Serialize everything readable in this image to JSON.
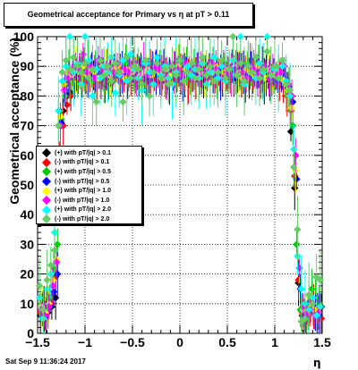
{
  "chart_data": {
    "type": "scatter",
    "title": "Geometrical acceptance for Primary vs    η at pT > 0.11",
    "xlabel": "η",
    "ylabel": "Geometrical acceptance (%)",
    "xlim": [
      -1.5,
      1.5
    ],
    "ylim": [
      0,
      100
    ],
    "x_ticks": [
      "−1.5",
      "−1",
      "−0.5",
      "0",
      "0.5",
      "1",
      "1.5"
    ],
    "y_ticks": [
      "0",
      "10",
      "20",
      "30",
      "40",
      "50",
      "60",
      "70",
      "80",
      "90",
      "100"
    ],
    "grid": true,
    "legend_position": "left-middle",
    "series": [
      {
        "name": "(+) with pT/|q| > 0.1",
        "color": "#000000",
        "x": [
          -1.47,
          -1.43,
          -1.39,
          -1.35,
          -1.31,
          -1.27,
          -1.23,
          -1.19,
          -1.15,
          -1.11,
          -1.07,
          -1.03,
          -0.99,
          -0.95,
          -0.91,
          -0.87,
          -0.83,
          -0.79,
          -0.75,
          -0.71,
          -0.67,
          -0.63,
          -0.59,
          -0.55,
          -0.51,
          -0.47,
          -0.43,
          -0.39,
          -0.35,
          -0.31,
          -0.27,
          -0.23,
          -0.19,
          -0.15,
          -0.11,
          -0.07,
          -0.03,
          0.01,
          0.05,
          0.09,
          0.13,
          0.17,
          0.21,
          0.25,
          0.29,
          0.33,
          0.37,
          0.41,
          0.45,
          0.49,
          0.53,
          0.57,
          0.61,
          0.65,
          0.69,
          0.73,
          0.77,
          0.81,
          0.85,
          0.89,
          0.93,
          0.97,
          1.01,
          1.05,
          1.09,
          1.13,
          1.17,
          1.21,
          1.25,
          1.29,
          1.33,
          1.37,
          1.41,
          1.45,
          1.49
        ],
        "y": [
          6,
          8,
          7,
          9,
          12,
          60,
          75,
          80,
          81,
          84,
          86,
          87,
          85,
          86,
          87,
          86,
          85,
          84,
          86,
          85,
          88,
          87,
          85,
          86,
          87,
          86,
          88,
          87,
          86,
          85,
          86,
          87,
          86,
          88,
          85,
          86,
          87,
          86,
          87,
          85,
          86,
          88,
          87,
          86,
          87,
          88,
          86,
          87,
          86,
          85,
          87,
          86,
          88,
          87,
          85,
          86,
          87,
          88,
          86,
          85,
          86,
          87,
          85,
          86,
          84,
          82,
          68,
          49,
          17,
          6,
          5,
          8,
          7,
          6,
          9
        ]
      },
      {
        "name": "(-) with pT/|q| > 0.1",
        "color": "#ff0000",
        "x": [
          -1.47,
          -1.43,
          -1.39,
          -1.35,
          -1.31,
          -1.27,
          -1.23,
          -1.19,
          -1.15,
          -1.11,
          -1.07,
          -1.03,
          -0.99,
          -0.95,
          -0.91,
          -0.87,
          -0.83,
          -0.79,
          -0.75,
          -0.71,
          -0.67,
          -0.63,
          -0.59,
          -0.55,
          -0.51,
          -0.47,
          -0.43,
          -0.39,
          -0.35,
          -0.31,
          -0.27,
          -0.23,
          -0.19,
          -0.15,
          -0.11,
          -0.07,
          -0.03,
          0.01,
          0.05,
          0.09,
          0.13,
          0.17,
          0.21,
          0.25,
          0.29,
          0.33,
          0.37,
          0.41,
          0.45,
          0.49,
          0.53,
          0.57,
          0.61,
          0.65,
          0.69,
          0.73,
          0.77,
          0.81,
          0.85,
          0.89,
          0.93,
          0.97,
          1.01,
          1.05,
          1.09,
          1.13,
          1.17,
          1.21,
          1.25,
          1.29,
          1.33,
          1.37,
          1.41,
          1.45,
          1.49
        ],
        "y": [
          7,
          9,
          8,
          10,
          19,
          62,
          70,
          77,
          80,
          85,
          84,
          86,
          85,
          87,
          86,
          85,
          86,
          87,
          85,
          86,
          87,
          88,
          86,
          85,
          86,
          87,
          85,
          86,
          87,
          88,
          86,
          85,
          87,
          86,
          85,
          87,
          86,
          88,
          86,
          85,
          87,
          86,
          85,
          88,
          86,
          87,
          86,
          88,
          87,
          86,
          85,
          87,
          86,
          85,
          88,
          86,
          87,
          86,
          85,
          86,
          87,
          84,
          86,
          85,
          83,
          80,
          75,
          53,
          18,
          7,
          6,
          8,
          9,
          7,
          5
        ]
      },
      {
        "name": "(+) with pT/|q| > 0.5",
        "color": "#00cc00",
        "x": [
          -1.45,
          -1.41,
          -1.37,
          -1.33,
          -1.29,
          -1.25,
          -1.21,
          -1.17,
          -1.13,
          -1.09,
          -1.05,
          -1.01,
          -0.97,
          -0.93,
          -0.89,
          -0.85,
          -0.81,
          -0.77,
          -0.73,
          -0.69,
          -0.65,
          -0.61,
          -0.57,
          -0.53,
          -0.49,
          -0.45,
          -0.41,
          -0.37,
          -0.33,
          -0.29,
          -0.25,
          -0.21,
          -0.17,
          -0.13,
          -0.09,
          -0.05,
          -0.01,
          0.03,
          0.07,
          0.11,
          0.15,
          0.19,
          0.23,
          0.27,
          0.31,
          0.35,
          0.39,
          0.43,
          0.47,
          0.51,
          0.55,
          0.59,
          0.63,
          0.67,
          0.71,
          0.75,
          0.79,
          0.83,
          0.87,
          0.91,
          0.95,
          0.99,
          1.03,
          1.07,
          1.11,
          1.15,
          1.19,
          1.23,
          1.27,
          1.31,
          1.35,
          1.39,
          1.43,
          1.47
        ],
        "y": [
          10,
          8,
          12,
          22,
          30,
          72,
          80,
          88,
          85,
          90,
          86,
          89,
          91,
          85,
          88,
          90,
          87,
          89,
          86,
          90,
          88,
          87,
          91,
          86,
          89,
          88,
          90,
          86,
          89,
          91,
          87,
          88,
          90,
          86,
          89,
          88,
          91,
          87,
          90,
          86,
          89,
          91,
          88,
          87,
          90,
          89,
          86,
          88,
          91,
          87,
          90,
          88,
          86,
          89,
          91,
          87,
          88,
          90,
          86,
          89,
          88,
          85,
          87,
          86,
          84,
          82,
          70,
          30,
          8,
          5,
          7,
          15,
          12,
          10
        ]
      },
      {
        "name": "(-) with pT/|q| > 0.5",
        "color": "#0000ff",
        "x": [
          -1.45,
          -1.41,
          -1.37,
          -1.33,
          -1.29,
          -1.25,
          -1.21,
          -1.17,
          -1.13,
          -1.09,
          -1.05,
          -1.01,
          -0.97,
          -0.93,
          -0.89,
          -0.85,
          -0.81,
          -0.77,
          -0.73,
          -0.69,
          -0.65,
          -0.61,
          -0.57,
          -0.53,
          -0.49,
          -0.45,
          -0.41,
          -0.37,
          -0.33,
          -0.29,
          -0.25,
          -0.21,
          -0.17,
          -0.13,
          -0.09,
          -0.05,
          -0.01,
          0.03,
          0.07,
          0.11,
          0.15,
          0.19,
          0.23,
          0.27,
          0.31,
          0.35,
          0.39,
          0.43,
          0.47,
          0.51,
          0.55,
          0.59,
          0.63,
          0.67,
          0.71,
          0.75,
          0.79,
          0.83,
          0.87,
          0.91,
          0.95,
          0.99,
          1.03,
          1.07,
          1.11,
          1.15,
          1.19,
          1.23,
          1.27,
          1.31,
          1.35,
          1.39,
          1.43,
          1.47
        ],
        "y": [
          8,
          6,
          9,
          14,
          20,
          71,
          82,
          86,
          88,
          87,
          89,
          88,
          86,
          90,
          87,
          88,
          89,
          86,
          88,
          90,
          87,
          88,
          86,
          89,
          87,
          88,
          90,
          87,
          86,
          89,
          88,
          87,
          90,
          86,
          88,
          89,
          87,
          86,
          90,
          88,
          87,
          89,
          86,
          88,
          90,
          87,
          89,
          86,
          88,
          87,
          90,
          86,
          89,
          88,
          87,
          90,
          86,
          88,
          89,
          87,
          86,
          88,
          85,
          87,
          86,
          83,
          78,
          52,
          15,
          6,
          8,
          9,
          7,
          6
        ]
      },
      {
        "name": "(+) with pT/|q| > 1.0",
        "color": "#ffff00",
        "x": [
          -1.46,
          -1.42,
          -1.38,
          -1.34,
          -1.3,
          -1.26,
          -1.22,
          -1.18,
          -1.14,
          -1.1,
          -1.06,
          -1.02,
          -0.98,
          -0.94,
          -0.9,
          -0.86,
          -0.82,
          -0.78,
          -0.74,
          -0.7,
          -0.66,
          -0.62,
          -0.58,
          -0.54,
          -0.5,
          -0.46,
          -0.42,
          -0.38,
          -0.34,
          -0.3,
          -0.26,
          -0.22,
          -0.18,
          -0.14,
          -0.1,
          -0.06,
          -0.02,
          0.02,
          0.06,
          0.1,
          0.14,
          0.18,
          0.22,
          0.26,
          0.3,
          0.34,
          0.38,
          0.42,
          0.46,
          0.5,
          0.54,
          0.58,
          0.62,
          0.66,
          0.7,
          0.74,
          0.78,
          0.82,
          0.86,
          0.9,
          0.94,
          0.98,
          1.02,
          1.06,
          1.1,
          1.14,
          1.18,
          1.22,
          1.26,
          1.3,
          1.34,
          1.38,
          1.42,
          1.46
        ],
        "y": [
          9,
          7,
          10,
          18,
          25,
          73,
          84,
          88,
          87,
          89,
          88,
          90,
          87,
          89,
          88,
          86,
          90,
          88,
          87,
          89,
          90,
          88,
          86,
          89,
          88,
          90,
          87,
          88,
          89,
          87,
          90,
          88,
          86,
          89,
          87,
          88,
          90,
          87,
          89,
          88,
          86,
          90,
          88,
          87,
          89,
          88,
          90,
          86,
          88,
          89,
          87,
          90,
          88,
          86,
          89,
          88,
          87,
          90,
          88,
          86,
          89,
          87,
          88,
          86,
          85,
          82,
          76,
          55,
          21,
          8,
          7,
          9,
          8,
          7
        ]
      },
      {
        "name": "(-) with pT/|q| > 1.0",
        "color": "#ff00ff",
        "x": [
          -1.46,
          -1.42,
          -1.38,
          -1.34,
          -1.3,
          -1.26,
          -1.22,
          -1.18,
          -1.14,
          -1.1,
          -1.06,
          -1.02,
          -0.98,
          -0.94,
          -0.9,
          -0.86,
          -0.82,
          -0.78,
          -0.74,
          -0.7,
          -0.66,
          -0.62,
          -0.58,
          -0.54,
          -0.5,
          -0.46,
          -0.42,
          -0.38,
          -0.34,
          -0.3,
          -0.26,
          -0.22,
          -0.18,
          -0.14,
          -0.1,
          -0.06,
          -0.02,
          0.02,
          0.06,
          0.1,
          0.14,
          0.18,
          0.22,
          0.26,
          0.3,
          0.34,
          0.38,
          0.42,
          0.46,
          0.5,
          0.54,
          0.58,
          0.62,
          0.66,
          0.7,
          0.74,
          0.78,
          0.82,
          0.86,
          0.9,
          0.94,
          0.98,
          1.02,
          1.06,
          1.1,
          1.14,
          1.18,
          1.22,
          1.26,
          1.3,
          1.34,
          1.38,
          1.42,
          1.46
        ],
        "y": [
          8,
          6,
          9,
          16,
          24,
          70,
          82,
          86,
          88,
          90,
          89,
          94,
          88,
          90,
          86,
          92,
          89,
          87,
          90,
          88,
          91,
          87,
          89,
          88,
          90,
          86,
          89,
          91,
          87,
          88,
          90,
          89,
          87,
          86,
          90,
          88,
          89,
          87,
          91,
          88,
          86,
          90,
          89,
          87,
          88,
          91,
          89,
          86,
          90,
          88,
          87,
          89,
          91,
          88,
          86,
          90,
          89,
          87,
          88,
          90,
          86,
          89,
          87,
          88,
          90,
          84,
          80,
          60,
          22,
          9,
          7,
          8,
          6,
          7
        ]
      },
      {
        "name": "(+) with pT/|q| > 2.0",
        "color": "#00ffff",
        "x": [
          -1.48,
          -1.44,
          -1.4,
          -1.36,
          -1.32,
          -1.28,
          -1.24,
          -1.2,
          -1.16,
          -1.12,
          -1.08,
          -1.04,
          -1.0,
          -0.96,
          -0.92,
          -0.88,
          -0.84,
          -0.8,
          -0.76,
          -0.72,
          -0.68,
          -0.64,
          -0.6,
          -0.56,
          -0.52,
          -0.48,
          -0.44,
          -0.4,
          -0.36,
          -0.32,
          -0.28,
          -0.24,
          -0.2,
          -0.16,
          -0.12,
          -0.08,
          -0.04,
          0.0,
          0.04,
          0.08,
          0.12,
          0.16,
          0.2,
          0.24,
          0.28,
          0.32,
          0.36,
          0.4,
          0.44,
          0.48,
          0.52,
          0.56,
          0.6,
          0.64,
          0.68,
          0.72,
          0.76,
          0.8,
          0.84,
          0.88,
          0.92,
          0.96,
          1.0,
          1.04,
          1.08,
          1.12,
          1.16,
          1.2,
          1.24,
          1.28,
          1.32,
          1.36,
          1.4,
          1.44,
          1.48
        ],
        "y": [
          12,
          5,
          15,
          20,
          34,
          75,
          85,
          90,
          100,
          88,
          91,
          84,
          100,
          92,
          80,
          89,
          86,
          90,
          88,
          93,
          81,
          87,
          92,
          85,
          94,
          89,
          86,
          82,
          91,
          88,
          84,
          93,
          87,
          90,
          86,
          84,
          88,
          92,
          85,
          90,
          87,
          89,
          86,
          91,
          84,
          88,
          93,
          86,
          90,
          85,
          89,
          92,
          87,
          100,
          84,
          90,
          88,
          86,
          91,
          88,
          100,
          87,
          89,
          86,
          90,
          85,
          80,
          62,
          26,
          15,
          10,
          8,
          12,
          6,
          9
        ]
      },
      {
        "name": "(-) with pT/|q| > 2.0",
        "color": "#66cc66",
        "x": [
          -1.48,
          -1.44,
          -1.4,
          -1.36,
          -1.32,
          -1.28,
          -1.24,
          -1.2,
          -1.16,
          -1.12,
          -1.08,
          -1.04,
          -1.0,
          -0.96,
          -0.92,
          -0.88,
          -0.84,
          -0.8,
          -0.76,
          -0.72,
          -0.68,
          -0.64,
          -0.6,
          -0.56,
          -0.52,
          -0.48,
          -0.44,
          -0.4,
          -0.36,
          -0.32,
          -0.28,
          -0.24,
          -0.2,
          -0.16,
          -0.12,
          -0.08,
          -0.04,
          0.0,
          0.04,
          0.08,
          0.12,
          0.16,
          0.2,
          0.24,
          0.28,
          0.32,
          0.36,
          0.4,
          0.44,
          0.48,
          0.52,
          0.56,
          0.6,
          0.64,
          0.68,
          0.72,
          0.76,
          0.8,
          0.84,
          0.88,
          0.92,
          0.96,
          1.0,
          1.04,
          1.08,
          1.12,
          1.16,
          1.2,
          1.24,
          1.28,
          1.32,
          1.36,
          1.4,
          1.44,
          1.48
        ],
        "y": [
          16,
          8,
          18,
          23,
          28,
          70,
          88,
          92,
          89,
          93,
          90,
          88,
          91,
          86,
          89,
          78,
          92,
          87,
          90,
          85,
          91,
          88,
          78,
          93,
          86,
          90,
          89,
          84,
          92,
          80,
          88,
          91,
          86,
          89,
          84,
          90,
          87,
          92,
          85,
          88,
          91,
          86,
          89,
          93,
          87,
          90,
          85,
          88,
          92,
          86,
          89,
          100,
          87,
          91,
          85,
          90,
          88,
          93,
          86,
          89,
          95,
          87,
          90,
          86,
          92,
          84,
          82,
          56,
          35,
          4,
          5,
          13,
          10,
          19,
          18
        ]
      }
    ]
  },
  "footer": {
    "date": "Sat Sep  9 11:36:24 2017"
  }
}
